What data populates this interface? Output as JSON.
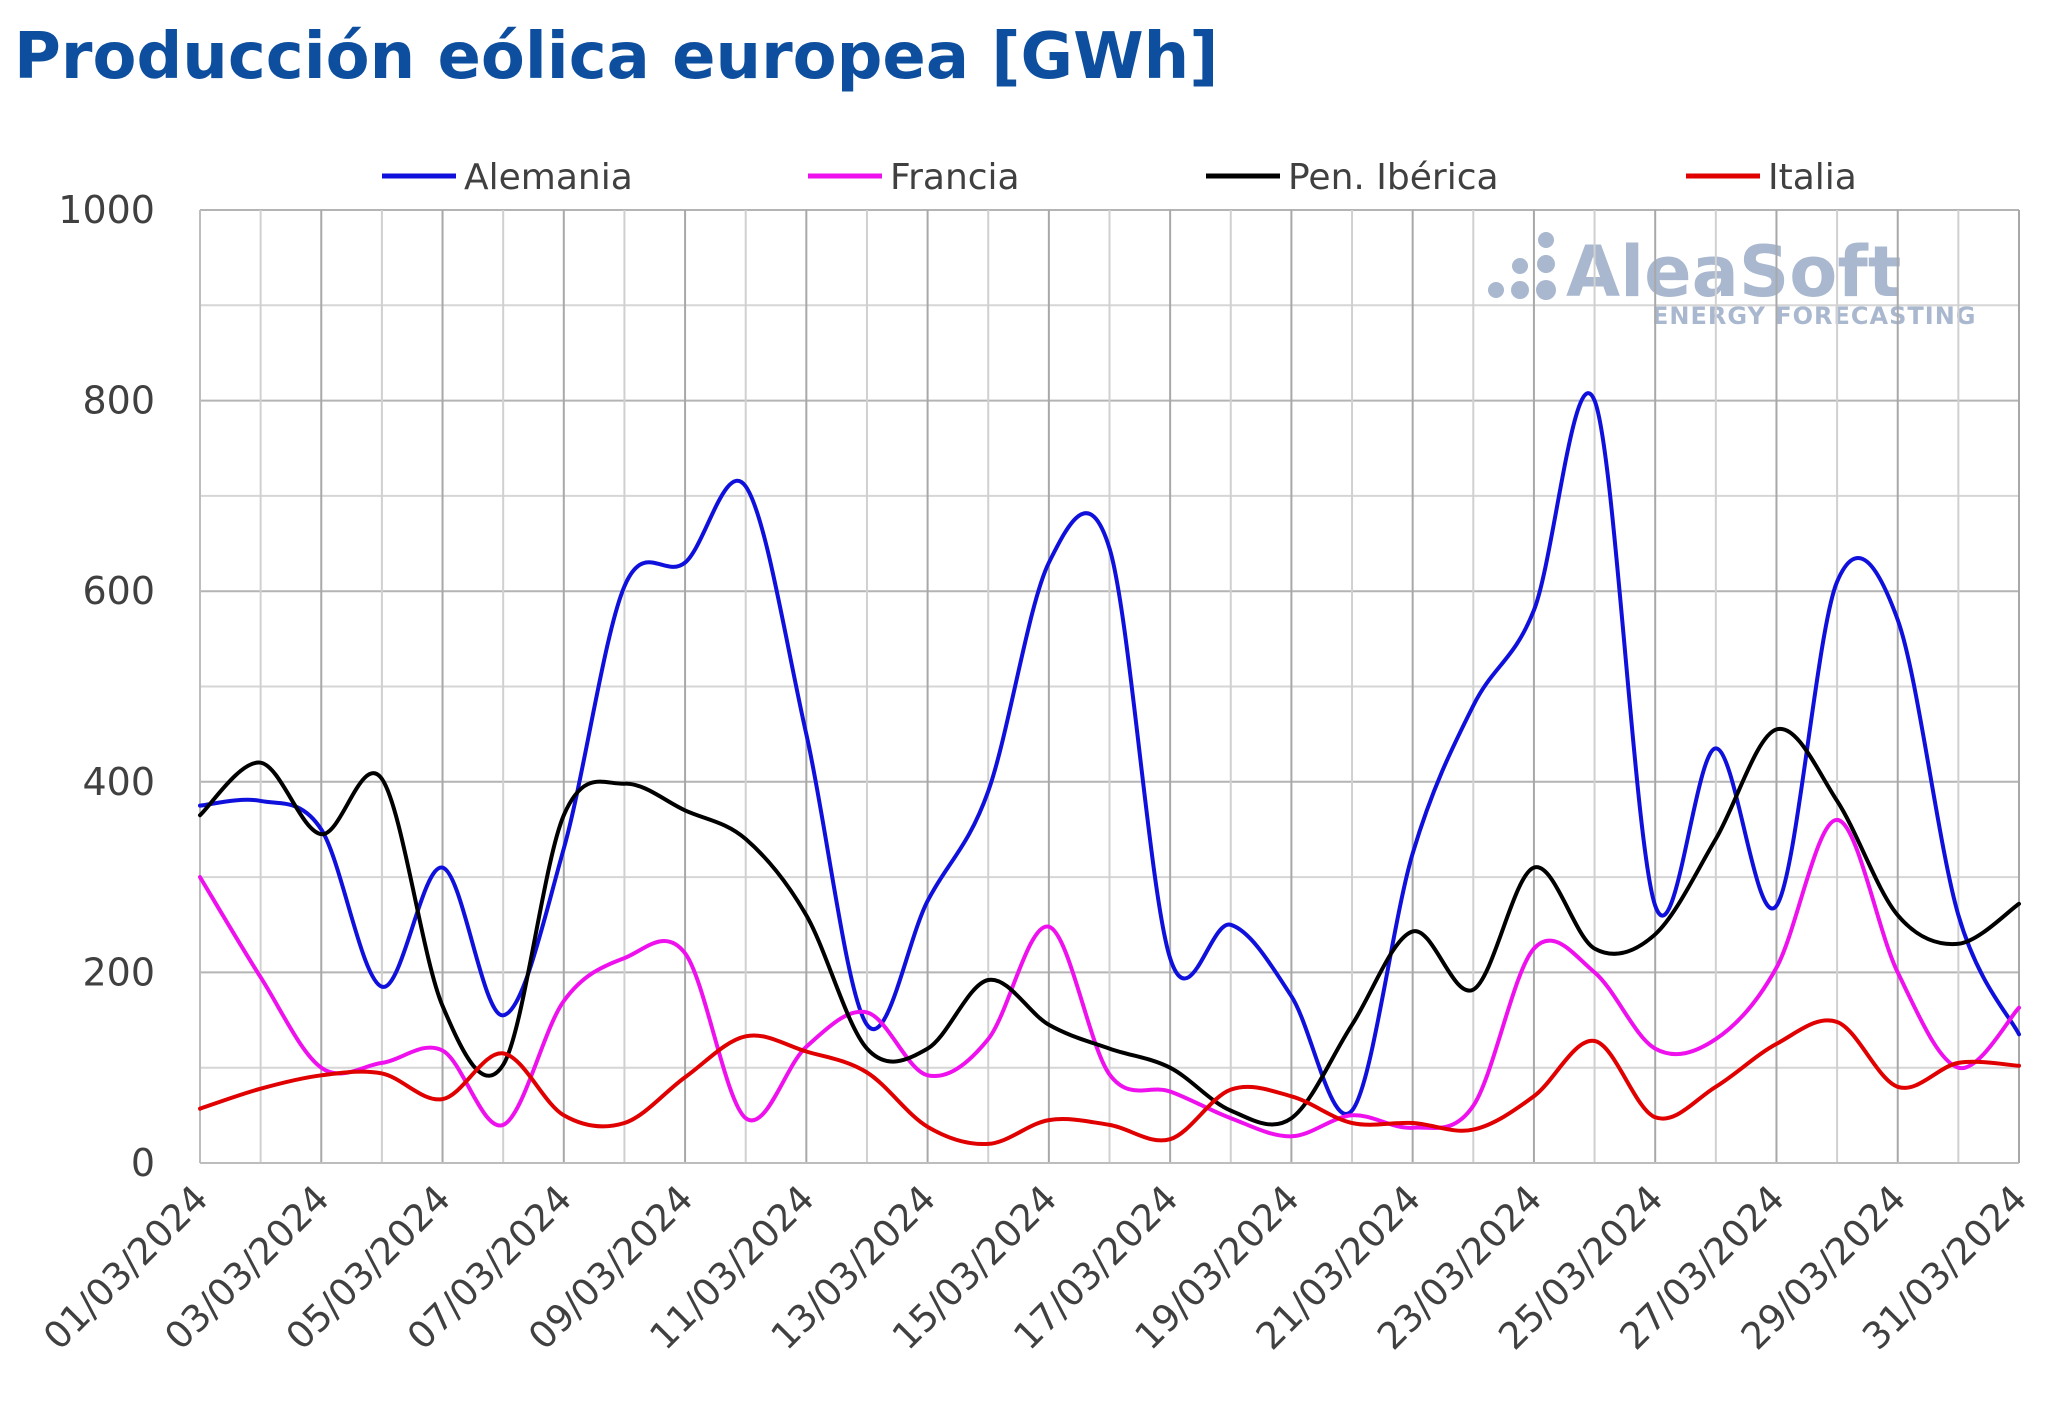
{
  "title": "Producción eólica europea [GWh]",
  "watermark": {
    "brand": "AleaSoft",
    "tagline": "ENERGY FORECASTING"
  },
  "chart_data": {
    "type": "line",
    "title": "Producción eólica europea [GWh]",
    "xlabel": "",
    "ylabel": "",
    "ylim": [
      0,
      1000
    ],
    "yticks": [
      "0",
      "200",
      "400",
      "600",
      "800",
      "1000"
    ],
    "grid": true,
    "legend_position": "top",
    "x": [
      "01/03/2024",
      "02/03/2024",
      "03/03/2024",
      "04/03/2024",
      "05/03/2024",
      "06/03/2024",
      "07/03/2024",
      "08/03/2024",
      "09/03/2024",
      "10/03/2024",
      "11/03/2024",
      "12/03/2024",
      "13/03/2024",
      "14/03/2024",
      "15/03/2024",
      "16/03/2024",
      "17/03/2024",
      "18/03/2024",
      "19/03/2024",
      "20/03/2024",
      "21/03/2024",
      "22/03/2024",
      "23/03/2024",
      "24/03/2024",
      "25/03/2024",
      "26/03/2024",
      "27/03/2024",
      "28/03/2024",
      "29/03/2024",
      "30/03/2024",
      "31/03/2024"
    ],
    "xtick_labels": [
      "01/03/2024",
      "03/03/2024",
      "05/03/2024",
      "07/03/2024",
      "09/03/2024",
      "11/03/2024",
      "13/03/2024",
      "15/03/2024",
      "17/03/2024",
      "19/03/2024",
      "21/03/2024",
      "23/03/2024",
      "25/03/2024",
      "27/03/2024",
      "29/03/2024",
      "31/03/2024"
    ],
    "series": [
      {
        "name": "Alemania",
        "color": "#1010dd",
        "values": [
          375,
          380,
          350,
          185,
          310,
          155,
          330,
          605,
          630,
          710,
          450,
          145,
          275,
          390,
          630,
          645,
          215,
          250,
          175,
          55,
          325,
          480,
          580,
          800,
          270,
          435,
          270,
          610,
          570,
          260,
          135
        ]
      },
      {
        "name": "Francia",
        "color": "#ee11ee",
        "values": [
          300,
          195,
          100,
          105,
          118,
          40,
          170,
          215,
          220,
          47,
          122,
          158,
          92,
          130,
          248,
          93,
          75,
          47,
          28,
          50,
          37,
          60,
          225,
          200,
          120,
          130,
          205,
          360,
          200,
          100,
          163
        ]
      },
      {
        "name": "Pen. Ibérica",
        "color": "#000000",
        "values": [
          365,
          420,
          345,
          403,
          165,
          103,
          365,
          398,
          370,
          340,
          260,
          120,
          120,
          192,
          145,
          120,
          100,
          55,
          47,
          145,
          243,
          182,
          310,
          225,
          240,
          340,
          455,
          380,
          260,
          230,
          272
        ]
      },
      {
        "name": "Italia",
        "color": "#e00000",
        "values": [
          57,
          78,
          92,
          94,
          67,
          115,
          50,
          42,
          90,
          133,
          117,
          95,
          38,
          20,
          45,
          40,
          25,
          77,
          70,
          42,
          42,
          35,
          70,
          128,
          48,
          80,
          125,
          148,
          80,
          105,
          102
        ]
      }
    ]
  }
}
